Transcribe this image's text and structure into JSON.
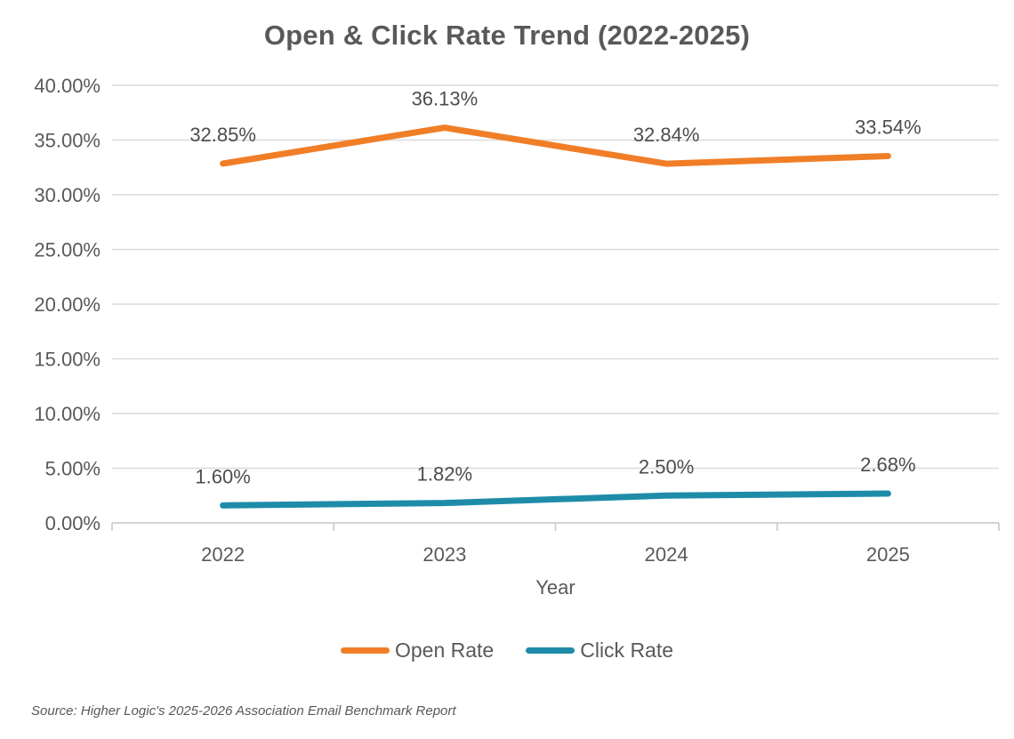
{
  "chart_data": {
    "type": "line",
    "title": "Open & Click Rate Trend (2022-2025)",
    "categories": [
      "2022",
      "2023",
      "2024",
      "2025"
    ],
    "series": [
      {
        "name": "Open Rate",
        "values": [
          32.85,
          36.13,
          32.84,
          33.54
        ],
        "labels": [
          "32.85%",
          "36.13%",
          "32.84%",
          "33.54%"
        ],
        "color": "#F07E27"
      },
      {
        "name": "Click Rate",
        "values": [
          1.6,
          1.82,
          2.5,
          2.68
        ],
        "labels": [
          "1.60%",
          "1.82%",
          "2.50%",
          "2.68%"
        ],
        "color": "#1E8CA8"
      }
    ],
    "xlabel": "Year",
    "ylabel": "",
    "ylim": [
      0,
      40
    ],
    "yticks": {
      "values": [
        40,
        35,
        30,
        25,
        20,
        15,
        10,
        5,
        0
      ],
      "labels": [
        "40.00%",
        "35.00%",
        "30.00%",
        "25.00%",
        "20.00%",
        "15.00%",
        "10.00%",
        "5.00%",
        "0.00%"
      ]
    },
    "grid": true,
    "legend_position": "bottom",
    "colors": {
      "gridline": "#DADADA",
      "axis_line": "#C6C6C6",
      "axis_text": "#595959",
      "data_label_text": "#4D4D4D"
    }
  },
  "footer": {
    "source": "Source: Higher Logic's 2025-2026 Association Email Benchmark Report"
  }
}
